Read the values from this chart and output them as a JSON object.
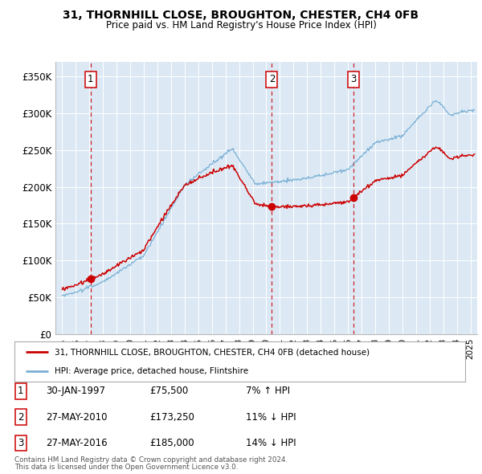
{
  "title": "31, THORNHILL CLOSE, BROUGHTON, CHESTER, CH4 0FB",
  "subtitle": "Price paid vs. HM Land Registry's House Price Index (HPI)",
  "property_label": "31, THORNHILL CLOSE, BROUGHTON, CHESTER, CH4 0FB (detached house)",
  "hpi_label": "HPI: Average price, detached house, Flintshire",
  "property_color": "#cc0000",
  "hpi_color": "#7aafd4",
  "background_color": "#dce9f5",
  "sale_points": [
    {
      "year": 1997.08,
      "price": 75500,
      "label": "1"
    },
    {
      "year": 2010.41,
      "price": 173250,
      "label": "2"
    },
    {
      "year": 2016.41,
      "price": 185000,
      "label": "3"
    }
  ],
  "sale_dates": [
    "30-JAN-1997",
    "27-MAY-2010",
    "27-MAY-2016"
  ],
  "sale_prices": [
    "£75,500",
    "£173,250",
    "£185,000"
  ],
  "sale_hpi_pct": [
    "7% ↑ HPI",
    "11% ↓ HPI",
    "14% ↓ HPI"
  ],
  "vline_color": "#cc0000",
  "ylim": [
    0,
    370000
  ],
  "xlim": [
    1994.5,
    2025.5
  ],
  "yticks": [
    0,
    50000,
    100000,
    150000,
    200000,
    250000,
    300000,
    350000
  ],
  "ytick_labels": [
    "£0",
    "£50K",
    "£100K",
    "£150K",
    "£200K",
    "£250K",
    "£300K",
    "£350K"
  ],
  "xtick_years": [
    1995,
    1996,
    1997,
    1998,
    1999,
    2000,
    2001,
    2002,
    2003,
    2004,
    2005,
    2006,
    2007,
    2008,
    2009,
    2010,
    2011,
    2012,
    2013,
    2014,
    2015,
    2016,
    2017,
    2018,
    2019,
    2020,
    2021,
    2022,
    2023,
    2024,
    2025
  ],
  "footnote1": "Contains HM Land Registry data © Crown copyright and database right 2024.",
  "footnote2": "This data is licensed under the Open Government Licence v3.0."
}
